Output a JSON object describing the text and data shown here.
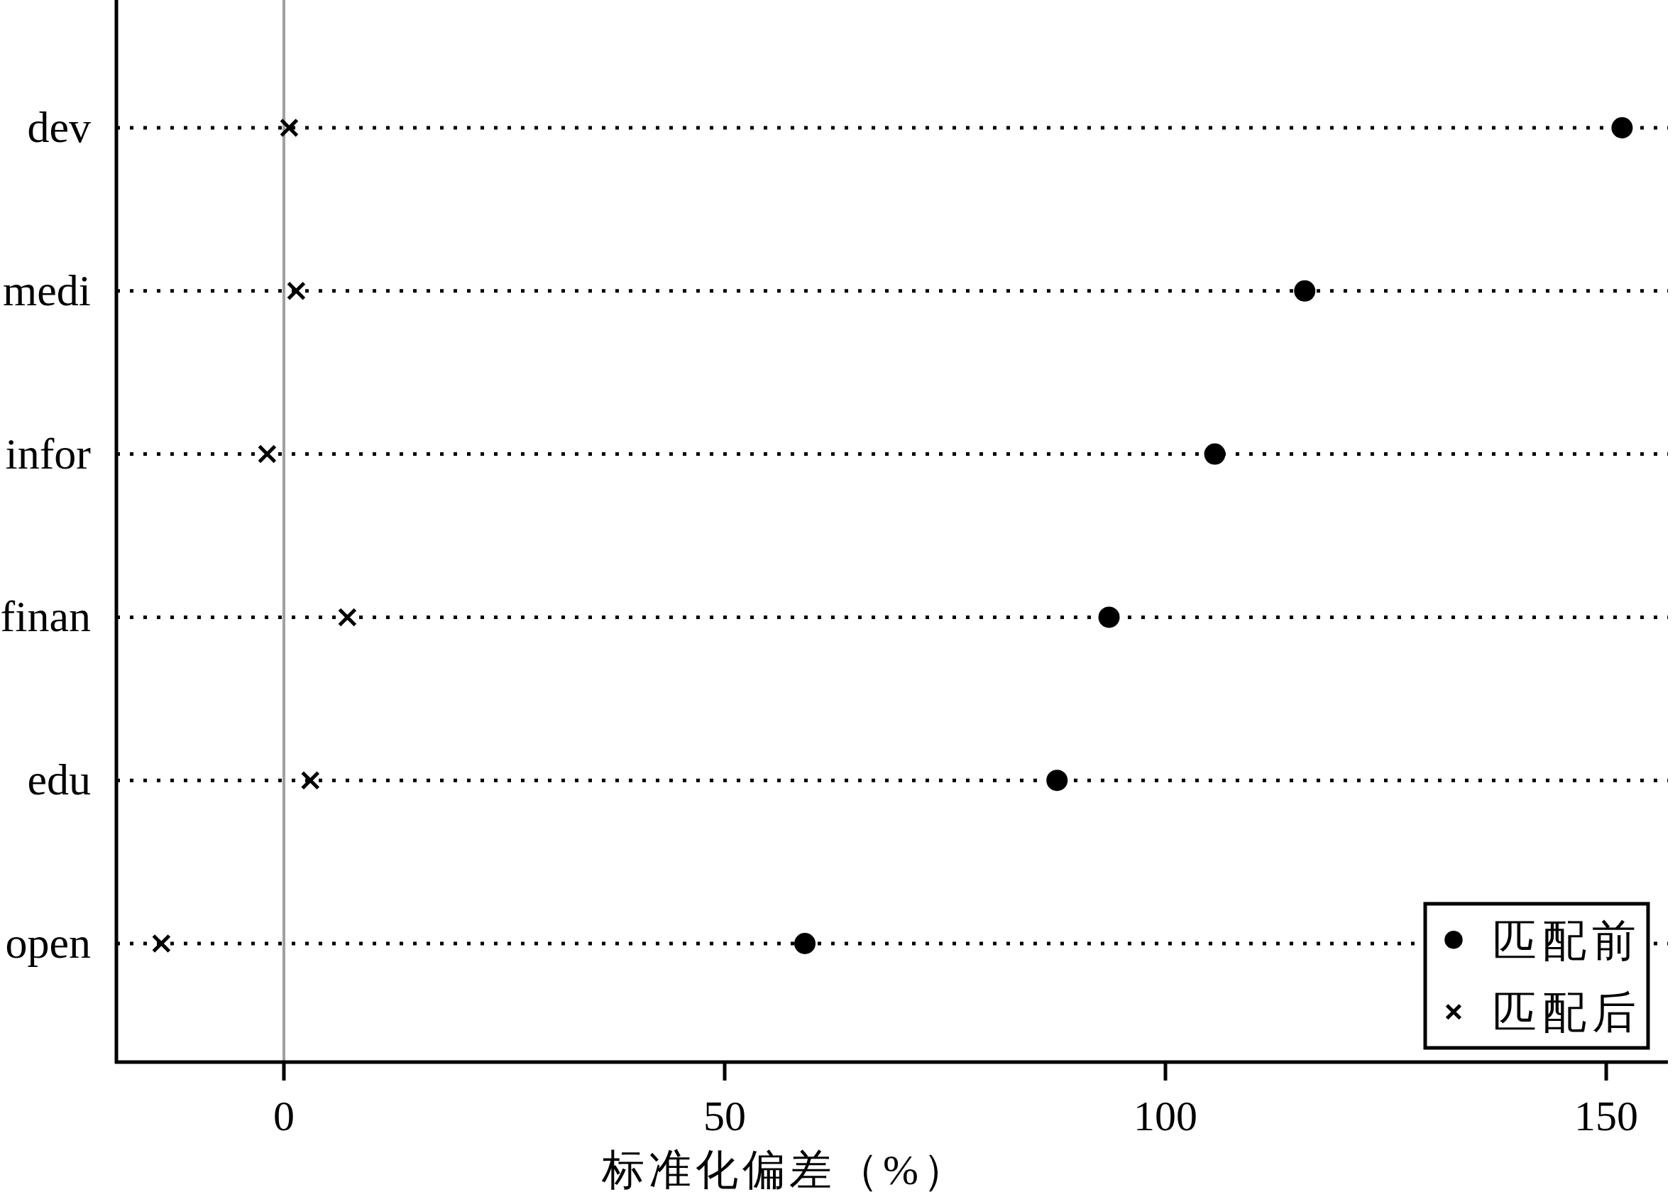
{
  "chart_data": {
    "type": "scatter",
    "orientation": "horizontal",
    "categories": [
      "dev",
      "medi",
      "infor",
      "finan",
      "edu",
      "open"
    ],
    "xlabel": "标准化偏差（%）",
    "xlim": [
      -19,
      157
    ],
    "xticks": [
      0,
      50,
      100,
      150
    ],
    "series": [
      {
        "name": "匹配前",
        "color": "#000000",
        "marker": "circle",
        "values": [
          151.8,
          115.8,
          105.6,
          93.6,
          87.7,
          59.1
        ]
      },
      {
        "name": "匹配后",
        "color": "#000000",
        "marker": "cross",
        "values": [
          0.6,
          1.4,
          -1.9,
          7.2,
          3.0,
          -13.9
        ]
      }
    ],
    "ref_lines": [
      {
        "axis": "x",
        "value": 0,
        "color": "#a0a0a0"
      }
    ],
    "grid": "y",
    "legend": "bottom right"
  }
}
